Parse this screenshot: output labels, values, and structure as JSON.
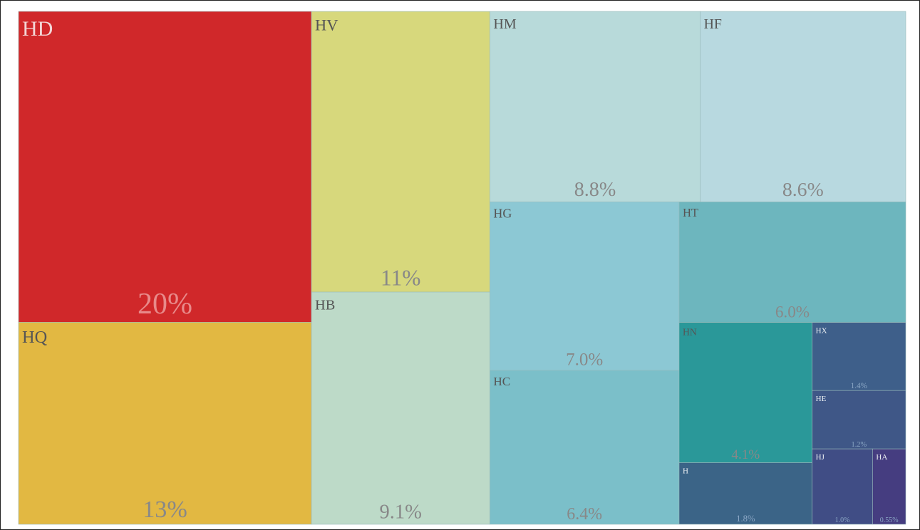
{
  "chart_data": {
    "type": "treemap",
    "categories": [
      "HD",
      "HQ",
      "HV",
      "HB",
      "HM",
      "HF",
      "HG",
      "HC",
      "HT",
      "HN",
      "H",
      "HX",
      "HE",
      "HJ",
      "HA"
    ],
    "values": [
      20,
      13,
      11,
      9.1,
      8.8,
      8.6,
      7,
      6.4,
      6,
      4.1,
      1.8,
      1.4,
      1.2,
      1,
      0.55
    ],
    "value_labels": [
      "20%",
      "13%",
      "11%",
      "9.1%",
      "8.8%",
      "8.6%",
      "7.0%",
      "6.4%",
      "6.0%",
      "4.1%",
      "1.8%",
      "1.4%",
      "1.2%",
      "1.0%",
      "0.55%"
    ],
    "colors": [
      "#d0282a",
      "#e2b842",
      "#d7d87c",
      "#bddac8",
      "#b8dada",
      "#b8d9e0",
      "#8cc8d4",
      "#7bbfc9",
      "#6db6be",
      "#2a9899",
      "#3b6487",
      "#3e5f8a",
      "#3f5787",
      "#404d85",
      "#453d80"
    ]
  }
}
